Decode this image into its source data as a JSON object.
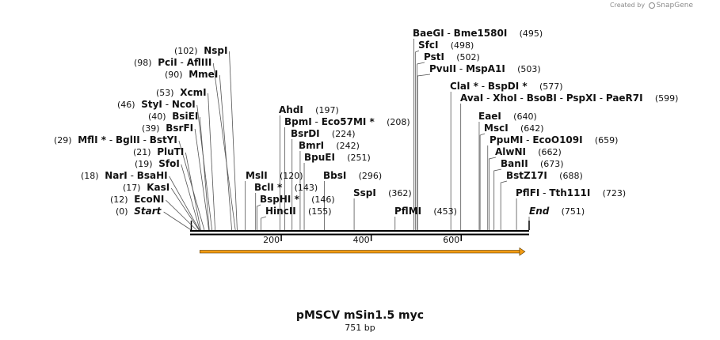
{
  "watermark": {
    "prefix": "Created by",
    "brand": "SnapGene"
  },
  "map": {
    "name": "pMSCV mSin1.5 myc",
    "length_label": "751 bp",
    "length": 751,
    "ticks": [
      200,
      400,
      600
    ],
    "feature": {
      "start": 19,
      "end": 742,
      "direction": "forward",
      "color": "#f39c12"
    }
  },
  "sites": [
    {
      "pos": 0,
      "pos_text": "(0)",
      "names": [
        "Start"
      ],
      "marker": true
    },
    {
      "pos": 12,
      "pos_text": "(12)",
      "names": [
        "EcoNI"
      ]
    },
    {
      "pos": 17,
      "pos_text": "(17)",
      "names": [
        "KasI"
      ]
    },
    {
      "pos": 18,
      "pos_text": "(18)",
      "names": [
        "NarI",
        "BsaHI"
      ]
    },
    {
      "pos": 19,
      "pos_text": "(19)",
      "names": [
        "SfoI"
      ]
    },
    {
      "pos": 21,
      "pos_text": "(21)",
      "names": [
        "PluTI"
      ]
    },
    {
      "pos": 29,
      "pos_text": "(29)",
      "names": [
        "MflI *",
        "BglII",
        "BstYI"
      ]
    },
    {
      "pos": 39,
      "pos_text": "(39)",
      "names": [
        "BsrFI"
      ]
    },
    {
      "pos": 40,
      "pos_text": "(40)",
      "names": [
        "BsiEI"
      ]
    },
    {
      "pos": 46,
      "pos_text": "(46)",
      "names": [
        "StyI",
        "NcoI"
      ]
    },
    {
      "pos": 53,
      "pos_text": "(53)",
      "names": [
        "XcmI"
      ]
    },
    {
      "pos": 90,
      "pos_text": "(90)",
      "names": [
        "MmeI"
      ]
    },
    {
      "pos": 98,
      "pos_text": "(98)",
      "names": [
        "PciI",
        "AflIII"
      ]
    },
    {
      "pos": 102,
      "pos_text": "(102)",
      "names": [
        "NspI"
      ]
    },
    {
      "pos": 120,
      "pos_text": "(120)",
      "names": [
        "MslI"
      ]
    },
    {
      "pos": 143,
      "pos_text": "(143)",
      "names": [
        "BclI *"
      ]
    },
    {
      "pos": 146,
      "pos_text": "(146)",
      "names": [
        "BspHI *"
      ]
    },
    {
      "pos": 155,
      "pos_text": "(155)",
      "names": [
        "HincII"
      ]
    },
    {
      "pos": 197,
      "pos_text": "(197)",
      "names": [
        "AhdI"
      ]
    },
    {
      "pos": 208,
      "pos_text": "(208)",
      "names": [
        "BpmI",
        "Eco57MI *"
      ]
    },
    {
      "pos": 224,
      "pos_text": "(224)",
      "names": [
        "BsrDI"
      ]
    },
    {
      "pos": 242,
      "pos_text": "(242)",
      "names": [
        "BmrI"
      ]
    },
    {
      "pos": 251,
      "pos_text": "(251)",
      "names": [
        "BpuEI"
      ]
    },
    {
      "pos": 296,
      "pos_text": "(296)",
      "names": [
        "BbsI"
      ]
    },
    {
      "pos": 362,
      "pos_text": "(362)",
      "names": [
        "SspI"
      ]
    },
    {
      "pos": 453,
      "pos_text": "(453)",
      "names": [
        "PflMI"
      ]
    },
    {
      "pos": 495,
      "pos_text": "(495)",
      "names": [
        "BaeGI",
        "Bme1580I"
      ]
    },
    {
      "pos": 498,
      "pos_text": "(498)",
      "names": [
        "SfcI"
      ]
    },
    {
      "pos": 502,
      "pos_text": "(502)",
      "names": [
        "PstI"
      ]
    },
    {
      "pos": 503,
      "pos_text": "(503)",
      "names": [
        "PvuII",
        "MspA1I"
      ]
    },
    {
      "pos": 577,
      "pos_text": "(577)",
      "names": [
        "ClaI *",
        "BspDI *"
      ]
    },
    {
      "pos": 599,
      "pos_text": "(599)",
      "names": [
        "AvaI",
        "XhoI",
        "BsoBI",
        "PspXI",
        "PaeR7I"
      ]
    },
    {
      "pos": 640,
      "pos_text": "(640)",
      "names": [
        "EaeI"
      ]
    },
    {
      "pos": 642,
      "pos_text": "(642)",
      "names": [
        "MscI"
      ]
    },
    {
      "pos": 659,
      "pos_text": "(659)",
      "names": [
        "PpuMI",
        "EcoO109I"
      ]
    },
    {
      "pos": 662,
      "pos_text": "(662)",
      "names": [
        "AlwNI"
      ]
    },
    {
      "pos": 673,
      "pos_text": "(673)",
      "names": [
        "BanII"
      ]
    },
    {
      "pos": 688,
      "pos_text": "(688)",
      "names": [
        "BstZ17I"
      ]
    },
    {
      "pos": 723,
      "pos_text": "(723)",
      "names": [
        "PflFI",
        "Tth111I"
      ]
    },
    {
      "pos": 751,
      "pos_text": "(751)",
      "names": [
        "End"
      ],
      "marker": true
    }
  ]
}
